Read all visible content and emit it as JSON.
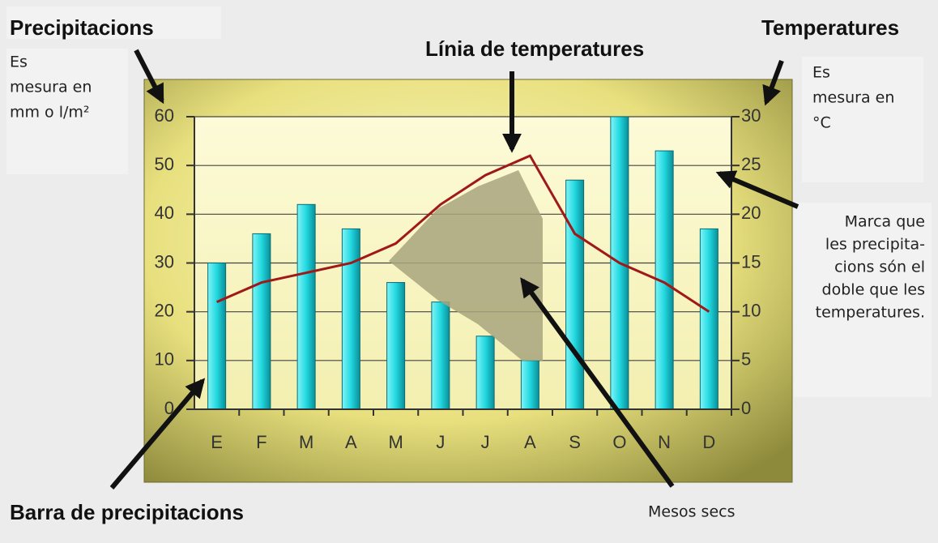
{
  "chart_data": {
    "type": "bar",
    "categories": [
      "E",
      "F",
      "M",
      "A",
      "M",
      "J",
      "J",
      "A",
      "S",
      "O",
      "N",
      "D"
    ],
    "series": [
      {
        "type": "bar",
        "color": "#22d8e0",
        "values": [
          30,
          36,
          42,
          37,
          26,
          22,
          15,
          10,
          47,
          60,
          53,
          37
        ]
      },
      {
        "type": "line",
        "color": "#a01818",
        "axis": "y2",
        "values": [
          11,
          13,
          14,
          15,
          17,
          21,
          24,
          26,
          18,
          15,
          13,
          10
        ]
      }
    ],
    "ylim": [
      0,
      60
    ],
    "yticks": [
      0,
      10,
      20,
      30,
      40,
      50,
      60
    ],
    "y2lim": [
      0,
      30
    ],
    "y2ticks": [
      0,
      5,
      10,
      15,
      20,
      25,
      30
    ],
    "grid": true,
    "annotations": {
      "left_title": "Precipitacions",
      "left_note": [
        "Es",
        "mesura en",
        "mm o l/m²"
      ],
      "right_title": "Temperatures",
      "right_note": [
        "Es",
        "mesura en",
        "°C"
      ],
      "line_note": "Línia de temperatures",
      "double_note": [
        "Marca que",
        "les precipita-",
        "cions són el",
        "doble que les",
        "temperatures."
      ],
      "bar_note": "Barra de precipitacions",
      "dry_note": "Mesos secs"
    }
  }
}
